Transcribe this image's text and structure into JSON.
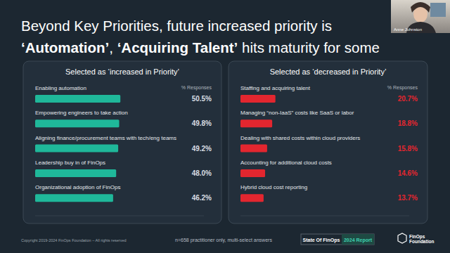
{
  "title": [
    [
      "Beyond Key Priorities, future increased priority is"
    ],
    [
      "‘Automation’",
      ", ",
      "‘Acquiring Talent’",
      " hits maturity for some"
    ]
  ],
  "speaker": "Anne Johnston",
  "footer": {
    "copyright": "Copyright 2019-2024 FinOps Foundation – All rights reserved",
    "note": "n=658 practitioner only, multi-select answers",
    "report": "State Of FinOps",
    "year": "2024 Report",
    "logo": [
      "FinOps",
      "Foundation"
    ]
  },
  "chart_data": [
    {
      "type": "bar",
      "orientation": "horizontal",
      "title": "Selected as ‘increased in Priority’",
      "xlabel": "% Responses",
      "categories": [
        "Enabling automation",
        "Empowering engineers to take action",
        "Aligning finance/procurement teams with tech/eng teams",
        "Leadership buy in of FinOps",
        "Organizational adoption of FinOps"
      ],
      "values": [
        50.5,
        49.8,
        49.2,
        48.0,
        46.2
      ],
      "value_labels": [
        "50.5%",
        "49.8%",
        "49.2%",
        "48.0%",
        "46.2%"
      ],
      "color": "#1fb89a",
      "xlim": [
        0,
        100
      ],
      "data_labels": true,
      "tick_labels": false,
      "grid": false
    },
    {
      "type": "bar",
      "orientation": "horizontal",
      "title": "Selected as ‘decreased in Priority’",
      "xlabel": "% Responses",
      "categories": [
        "Staffing and acquiring talent",
        "Managing “non-IaaS” costs like SaaS or labor",
        "Dealing with shared costs within cloud providers",
        "Accounting for additional cloud costs",
        "Hybrid cloud cost reporting"
      ],
      "values": [
        20.7,
        18.8,
        15.8,
        14.6,
        13.7
      ],
      "value_labels": [
        "20.7%",
        "18.8%",
        "15.8%",
        "14.6%",
        "13.7%"
      ],
      "color": "#e3262f",
      "xlim": [
        0,
        100
      ],
      "data_labels": true,
      "tick_labels": false,
      "grid": false
    }
  ]
}
